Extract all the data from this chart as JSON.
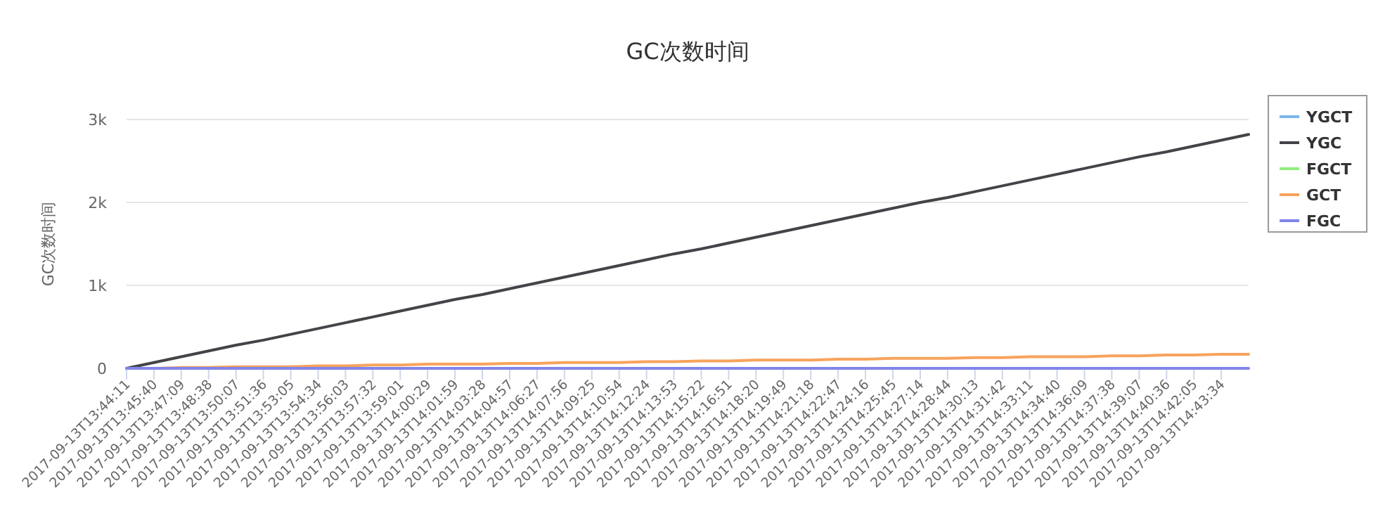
{
  "chart_data": {
    "type": "line",
    "title": "GC次数时间",
    "ylabel": "GC次数时间",
    "categories": [
      "2017-09-13T13:44:11",
      "2017-09-13T13:45:40",
      "2017-09-13T13:47:09",
      "2017-09-13T13:48:38",
      "2017-09-13T13:50:07",
      "2017-09-13T13:51:36",
      "2017-09-13T13:53:05",
      "2017-09-13T13:54:34",
      "2017-09-13T13:56:03",
      "2017-09-13T13:57:32",
      "2017-09-13T13:59:01",
      "2017-09-13T14:00:29",
      "2017-09-13T14:01:59",
      "2017-09-13T14:03:28",
      "2017-09-13T14:04:57",
      "2017-09-13T14:06:27",
      "2017-09-13T14:07:56",
      "2017-09-13T14:09:25",
      "2017-09-13T14:10:54",
      "2017-09-13T14:12:24",
      "2017-09-13T14:13:53",
      "2017-09-13T14:15:22",
      "2017-09-13T14:16:51",
      "2017-09-13T14:18:20",
      "2017-09-13T14:19:49",
      "2017-09-13T14:21:18",
      "2017-09-13T14:22:47",
      "2017-09-13T14:24:16",
      "2017-09-13T14:25:45",
      "2017-09-13T14:27:14",
      "2017-09-13T14:28:44",
      "2017-09-13T14:30:13",
      "2017-09-13T14:31:42",
      "2017-09-13T14:33:11",
      "2017-09-13T14:34:40",
      "2017-09-13T14:36:09",
      "2017-09-13T14:37:38",
      "2017-09-13T14:39:07",
      "2017-09-13T14:40:36",
      "2017-09-13T14:42:05",
      "2017-09-13T14:43:34",
      null
    ],
    "series": [
      {
        "name": "YGCT",
        "color": "#7cb5ec",
        "values": [
          null,
          null,
          null,
          null,
          null,
          null,
          null,
          null,
          null,
          null,
          null,
          null,
          null,
          null,
          null,
          null,
          null,
          null,
          null,
          null,
          null,
          null,
          null,
          null,
          null,
          null,
          null,
          null,
          null,
          null,
          null,
          null,
          null,
          null,
          null,
          null,
          null,
          null,
          null,
          null,
          null,
          null
        ]
      },
      {
        "name": "YGC",
        "color": "#434348",
        "values": [
          0,
          70,
          140,
          210,
          280,
          340,
          410,
          480,
          550,
          620,
          690,
          760,
          830,
          890,
          960,
          1030,
          1100,
          1170,
          1240,
          1310,
          1380,
          1440,
          1510,
          1580,
          1650,
          1720,
          1790,
          1860,
          1930,
          2000,
          2060,
          2130,
          2200,
          2270,
          2340,
          2410,
          2480,
          2550,
          2610,
          2680,
          2750,
          2820
        ]
      },
      {
        "name": "FGCT",
        "color": "#90ed7d",
        "values": [
          null,
          null,
          null,
          null,
          null,
          null,
          null,
          null,
          null,
          null,
          null,
          null,
          null,
          null,
          null,
          null,
          null,
          null,
          null,
          null,
          null,
          null,
          null,
          null,
          null,
          null,
          null,
          null,
          null,
          null,
          null,
          null,
          null,
          null,
          null,
          null,
          null,
          null,
          null,
          null,
          null,
          null
        ]
      },
      {
        "name": "GCT",
        "color": "#f7a35c",
        "values": [
          0,
          0,
          10,
          10,
          20,
          20,
          20,
          30,
          30,
          40,
          40,
          50,
          50,
          50,
          60,
          60,
          70,
          70,
          70,
          80,
          80,
          90,
          90,
          100,
          100,
          100,
          110,
          110,
          120,
          120,
          120,
          130,
          130,
          140,
          140,
          140,
          150,
          150,
          160,
          160,
          170,
          170
        ]
      },
      {
        "name": "FGC",
        "color": "#8085e9",
        "values": [
          0,
          0,
          0,
          0,
          0,
          0,
          0,
          0,
          0,
          0,
          0,
          0,
          0,
          0,
          0,
          0,
          0,
          0,
          0,
          0,
          0,
          0,
          0,
          0,
          0,
          0,
          0,
          0,
          0,
          0,
          0,
          0,
          0,
          0,
          0,
          0,
          0,
          0,
          0,
          0,
          0,
          0
        ]
      }
    ],
    "ylim": [
      0,
      3000
    ],
    "yticks": [
      0,
      {
        "value": 1000,
        "label": "1k"
      },
      {
        "value": 2000,
        "label": "2k"
      },
      {
        "value": 3000,
        "label": "3k"
      }
    ],
    "grid": "y",
    "legend": "right",
    "marker": "none",
    "line_style": "solid"
  }
}
